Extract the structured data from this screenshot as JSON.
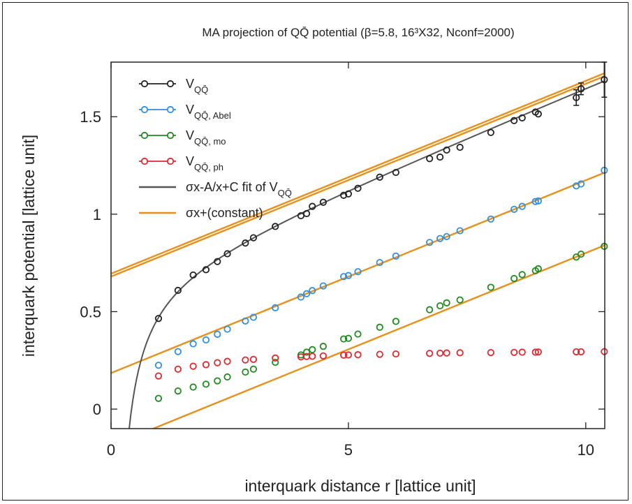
{
  "chart_data": {
    "type": "scatter",
    "title": "MA projection of QQ̄ potential (β=5.8, 16³X32, Nconf=2000)",
    "xlabel": "interquark distance r [lattice unit]",
    "ylabel": "interquark potential [lattice unit]",
    "xlim": [
      0,
      10.4
    ],
    "ylim": [
      -0.1,
      1.78
    ],
    "xticks": [
      0,
      5,
      10
    ],
    "xtick_labels": [
      "0",
      "5",
      "10"
    ],
    "yticks": [
      0,
      0.5,
      1,
      1.5
    ],
    "ytick_labels": [
      "0",
      "0.5",
      "1",
      "1.5"
    ],
    "grid": false,
    "legend_position": "top-left",
    "series": [
      {
        "name": "V_{QQ̄}",
        "label_main": "V",
        "label_sub": "QQ̄",
        "color": "#222222",
        "marker": "open-circle",
        "x": [
          1.0,
          1.41,
          1.73,
          2.0,
          2.24,
          2.45,
          2.83,
          3.0,
          3.46,
          4.0,
          4.12,
          4.24,
          4.47,
          4.9,
          5.0,
          5.2,
          5.66,
          6.0,
          6.71,
          6.93,
          7.07,
          7.35,
          8.0,
          8.49,
          8.66,
          8.94,
          9.0,
          9.8,
          9.9,
          10.39
        ],
        "y": [
          0.465,
          0.609,
          0.688,
          0.715,
          0.757,
          0.797,
          0.852,
          0.879,
          0.937,
          0.992,
          1.003,
          1.04,
          1.061,
          1.097,
          1.104,
          1.133,
          1.19,
          1.214,
          1.285,
          1.293,
          1.329,
          1.343,
          1.419,
          1.48,
          1.494,
          1.524,
          1.514,
          1.598,
          1.643,
          1.69
        ],
        "yerr": [
          0,
          0,
          0,
          0,
          0,
          0,
          0,
          0,
          0,
          0,
          0,
          0,
          0,
          0,
          0,
          0,
          0,
          0,
          0,
          0,
          0,
          0,
          0,
          0,
          0,
          0,
          0,
          0.04,
          0.03,
          0.09
        ]
      },
      {
        "name": "V_{QQ̄, Abel}",
        "label_main": "V",
        "label_sub": "QQ̄, Abel",
        "color": "#2f8fe0",
        "marker": "open-circle",
        "x": [
          1.0,
          1.41,
          1.73,
          2.0,
          2.24,
          2.45,
          2.83,
          3.0,
          3.46,
          4.0,
          4.12,
          4.24,
          4.47,
          4.9,
          5.0,
          5.2,
          5.66,
          6.0,
          6.71,
          6.93,
          7.07,
          7.35,
          8.0,
          8.49,
          8.66,
          8.94,
          9.0,
          9.8,
          9.9,
          10.39
        ],
        "y": [
          0.225,
          0.295,
          0.335,
          0.355,
          0.384,
          0.41,
          0.452,
          0.471,
          0.52,
          0.575,
          0.592,
          0.608,
          0.632,
          0.68,
          0.685,
          0.705,
          0.752,
          0.785,
          0.855,
          0.875,
          0.885,
          0.915,
          0.975,
          1.025,
          1.04,
          1.065,
          1.068,
          1.145,
          1.155,
          1.225
        ]
      },
      {
        "name": "V_{QQ̄, mo}",
        "label_main": "V",
        "label_sub": "QQ̄, mo",
        "color": "#1f8a1f",
        "marker": "open-circle",
        "x": [
          1.0,
          1.41,
          1.73,
          2.0,
          2.24,
          2.45,
          2.83,
          3.0,
          3.46,
          4.0,
          4.12,
          4.24,
          4.47,
          4.9,
          5.0,
          5.2,
          5.66,
          6.0,
          6.71,
          6.93,
          7.07,
          7.35,
          8.0,
          8.49,
          8.66,
          8.94,
          9.0,
          9.8,
          9.9,
          10.39
        ],
        "y": [
          0.055,
          0.093,
          0.113,
          0.128,
          0.145,
          0.165,
          0.19,
          0.205,
          0.24,
          0.278,
          0.292,
          0.305,
          0.322,
          0.36,
          0.363,
          0.385,
          0.42,
          0.45,
          0.51,
          0.53,
          0.545,
          0.56,
          0.625,
          0.67,
          0.69,
          0.71,
          0.72,
          0.78,
          0.795,
          0.835
        ]
      },
      {
        "name": "V_{QQ̄, ph}",
        "label_main": "V",
        "label_sub": "QQ̄, ph",
        "color": "#e0282e",
        "marker": "open-circle",
        "x": [
          1.0,
          1.41,
          1.73,
          2.0,
          2.24,
          2.45,
          2.83,
          3.0,
          3.46,
          4.0,
          4.12,
          4.24,
          4.47,
          4.9,
          5.0,
          5.2,
          5.66,
          6.0,
          6.71,
          6.93,
          7.07,
          7.35,
          8.0,
          8.49,
          8.66,
          8.94,
          9.0,
          9.8,
          9.9,
          10.39
        ],
        "y": [
          0.17,
          0.205,
          0.22,
          0.228,
          0.238,
          0.245,
          0.252,
          0.255,
          0.262,
          0.268,
          0.27,
          0.271,
          0.273,
          0.277,
          0.278,
          0.279,
          0.281,
          0.283,
          0.286,
          0.287,
          0.288,
          0.289,
          0.29,
          0.291,
          0.292,
          0.292,
          0.293,
          0.294,
          0.294,
          0.295
        ]
      }
    ],
    "fits": [
      {
        "name": "σx-A/x+C fit of V_{QQ̄}",
        "label_main": "σx-A/x+C fit of V",
        "label_sub": "QQ̄",
        "color": "#555555",
        "form": "sigma*x - A/x + C",
        "sigma": 0.0989,
        "A": 0.3145,
        "C": 0.6858,
        "x_start": 0.33,
        "x_end": 10.4
      },
      {
        "name": "σx+(constant)",
        "label_main": "σx+(constant)",
        "color": "#e8901a",
        "form": "sigma*x + constant",
        "sigma": 0.0989,
        "constants": [
          0.68,
          0.695,
          0.185,
          -0.188
        ],
        "x_start": 0,
        "x_end": 10.4
      }
    ]
  }
}
